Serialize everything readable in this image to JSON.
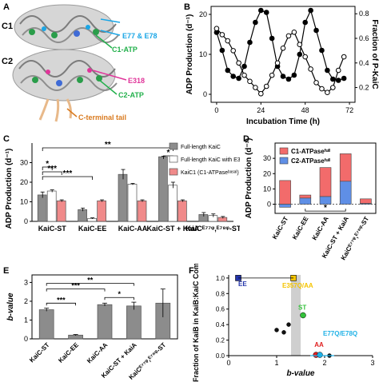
{
  "panels": {
    "a": "A",
    "b": "B",
    "c": "C",
    "d": "D",
    "e": "E",
    "f": "F"
  },
  "structure": {
    "labels": [
      "C1",
      "C2"
    ],
    "annotations": [
      {
        "text": "E77 & E78",
        "color": "#1aa6e6"
      },
      {
        "text": "C1-ATP",
        "color": "#22b04b"
      },
      {
        "text": "E318",
        "color": "#e0359a"
      },
      {
        "text": "C2-ATP",
        "color": "#22b04b"
      },
      {
        "text": "C-terminal tail",
        "color": "#d97a1f"
      }
    ]
  },
  "chart_data": [
    {
      "panel": "B",
      "type": "line",
      "xlabel": "Incubation Time (h)",
      "ylabel_left": "ADP Production (d⁻¹)",
      "ylabel_right": "Fraction of P-KaiC",
      "xticks": [
        0,
        24,
        48,
        72
      ],
      "yticks_left": [
        0,
        10,
        20
      ],
      "yticks_right": [
        0.2,
        0.4,
        0.6,
        0.8
      ],
      "xlim": [
        -3,
        75
      ],
      "ylim_left": [
        -2,
        22
      ],
      "ylim_right": [
        0.08,
        0.86
      ],
      "series": [
        {
          "axis": "left",
          "marker": "filled",
          "x": [
            0,
            3,
            6,
            9,
            12,
            15,
            18,
            21,
            24,
            27,
            30,
            33,
            36,
            39,
            42,
            45,
            48,
            51,
            54,
            57,
            60,
            63,
            66,
            69
          ],
          "y": [
            15.5,
            11,
            6,
            4.5,
            4,
            7,
            13,
            18,
            21,
            20.5,
            14,
            7,
            4.5,
            3.8,
            4.8,
            10,
            18,
            21,
            16,
            11,
            6,
            3.8,
            3.5,
            4
          ]
        },
        {
          "axis": "right",
          "marker": "open",
          "x": [
            0,
            3,
            6,
            9,
            12,
            15,
            18,
            21,
            24,
            27,
            30,
            33,
            36,
            39,
            42,
            45,
            48,
            51,
            54,
            57,
            60,
            63,
            66,
            69
          ],
          "y": [
            0.68,
            0.63,
            0.58,
            0.5,
            0.4,
            0.3,
            0.25,
            0.2,
            0.15,
            0.21,
            0.3,
            0.4,
            0.52,
            0.62,
            0.65,
            0.55,
            0.45,
            0.35,
            0.24,
            0.19,
            0.16,
            0.2,
            0.34,
            0.45
          ]
        }
      ]
    },
    {
      "panel": "C",
      "type": "bar",
      "ylabel": "ADP Production (d⁻¹)",
      "yticks": [
        0,
        10,
        20,
        30
      ],
      "ylim": [
        0,
        40
      ],
      "categories": [
        "KaiC-ST",
        "KaiC-EE",
        "KaiC-AA",
        "KaiC-ST + KaiA",
        "KaiCᴱ⁷⁷ᵠ,ᴱ⁷⁸ᵠ-ST"
      ],
      "legend": [
        "Full-length KaiC",
        "Full-length KaiC with E318Q",
        "KaiC1 (C1-ATPaseᵇᵃˢᵃˡ)"
      ],
      "series": [
        {
          "name": "Full-length KaiC",
          "color": "#8c8c8c",
          "values": [
            13.5,
            6,
            24,
            33,
            3.5
          ],
          "err": [
            1.5,
            0.8,
            2.5,
            0.3,
            1
          ]
        },
        {
          "name": "Full-length KaiC with E318Q",
          "color": "#ffffff",
          "values": [
            15.5,
            1.5,
            19,
            18.5,
            3
          ],
          "err": [
            0.6,
            0.3,
            0.4,
            1.5,
            0.8
          ]
        },
        {
          "name": "KaiC1 (C1-ATPase basal)",
          "color": "#f08a8a",
          "values": [
            10.5,
            10.5,
            10.5,
            10.5,
            2
          ],
          "err": [
            0.5,
            0.5,
            0.5,
            0.5,
            0.5
          ]
        }
      ],
      "significance": [
        {
          "label": "*",
          "from": 0,
          "to": 1
        },
        {
          "label": "***",
          "from": 0,
          "to": 4
        },
        {
          "label": "***",
          "from": 0,
          "to": 2
        },
        {
          "label": "**",
          "from": 0,
          "to": 10
        },
        {
          "label": "*",
          "from": 9,
          "to": 10
        }
      ],
      "legend_position": "top-right"
    },
    {
      "panel": "D",
      "type": "bar",
      "ylabel": "ADP Production (d⁻¹)",
      "yticks": [
        0,
        10,
        20,
        30
      ],
      "ylim": [
        -6,
        40
      ],
      "categories": [
        "KaiC-ST",
        "KaiC-EE",
        "KaiC-AA",
        "KaiC-ST + KaiA",
        "KaiCᴱ⁷⁷ᵠ,ᴱ⁷⁸ᵠ-ST"
      ],
      "legend": [
        "C1-ATPaseᶠᵘˡˡ",
        "C2-ATPaseᶠᵘˡˡ"
      ],
      "series": [
        {
          "name": "C1-ATPase full",
          "color": "#f26b6b",
          "values": [
            15.5,
            2,
            19,
            18,
            3
          ]
        },
        {
          "name": "C2-ATPase full",
          "color": "#5f8fe6",
          "values": [
            -2,
            4,
            5,
            15,
            0.5
          ]
        }
      ],
      "significance": [
        {
          "label": "*",
          "from": 1,
          "to": 3
        }
      ],
      "legend_position": "top-left"
    },
    {
      "panel": "E",
      "type": "bar",
      "ylabel": "b-value",
      "yticks": [
        0,
        1,
        2,
        3
      ],
      "ylim": [
        0,
        3.4
      ],
      "categories": [
        "KaiC-ST",
        "KaiC-EE",
        "KaiC-AA",
        "KaiC-ST + KaiA",
        "KaiCᴱ⁷⁷ᵠ,ᴱ⁷⁸ᵠ-ST"
      ],
      "series": [
        {
          "name": "",
          "color": "#8c8c8c",
          "values": [
            1.55,
            0.2,
            1.82,
            1.75,
            1.9
          ],
          "err": [
            0.08,
            0.03,
            0.08,
            0.2,
            0.75
          ]
        }
      ],
      "significance": [
        {
          "label": "***",
          "from": 0,
          "to": 1
        },
        {
          "label": "***",
          "from": 0,
          "to": 2
        },
        {
          "label": "**",
          "from": 0,
          "to": 3
        },
        {
          "label": "*",
          "from": 2,
          "to": 3
        }
      ]
    },
    {
      "panel": "F",
      "type": "scatter",
      "xlabel": "b-value",
      "ylabel": "Fraction of KaiB in KaiB:KaiC Complex",
      "xticks": [
        0,
        1,
        2,
        3
      ],
      "yticks": [
        0.0,
        0.2,
        0.4,
        0.6,
        0.8,
        1.0
      ],
      "xlim": [
        0,
        3
      ],
      "ylim": [
        0,
        1.04
      ],
      "shaded_band": [
        1.3,
        1.5
      ],
      "points": [
        {
          "label": "EE",
          "x": 0.2,
          "y": 1.0,
          "color": "#2233aa",
          "shape": "square"
        },
        {
          "label": "E357Q/AA",
          "x": 1.35,
          "y": 1.0,
          "color": "#f5c400",
          "shape": "square"
        },
        {
          "label": "ST",
          "x": 1.55,
          "y": 0.52,
          "color": "#33c13a",
          "shape": "circle"
        },
        {
          "label": "AA",
          "x": 1.82,
          "y": 0.01,
          "color": "#e02020",
          "shape": "circle"
        },
        {
          "label": "E77Q/E78Q",
          "x": 1.9,
          "y": 0.01,
          "color": "#1fb1e6",
          "shape": "circle"
        },
        {
          "label": "",
          "x": 1.0,
          "y": 0.33,
          "color": "#111111",
          "shape": "circle"
        },
        {
          "label": "",
          "x": 1.15,
          "y": 0.3,
          "color": "#111111",
          "shape": "circle"
        },
        {
          "label": "",
          "x": 1.25,
          "y": 0.4,
          "color": "#111111",
          "shape": "circle"
        },
        {
          "label": "",
          "x": 2.1,
          "y": 0.0,
          "color": "#111111",
          "shape": "circle"
        }
      ]
    }
  ]
}
